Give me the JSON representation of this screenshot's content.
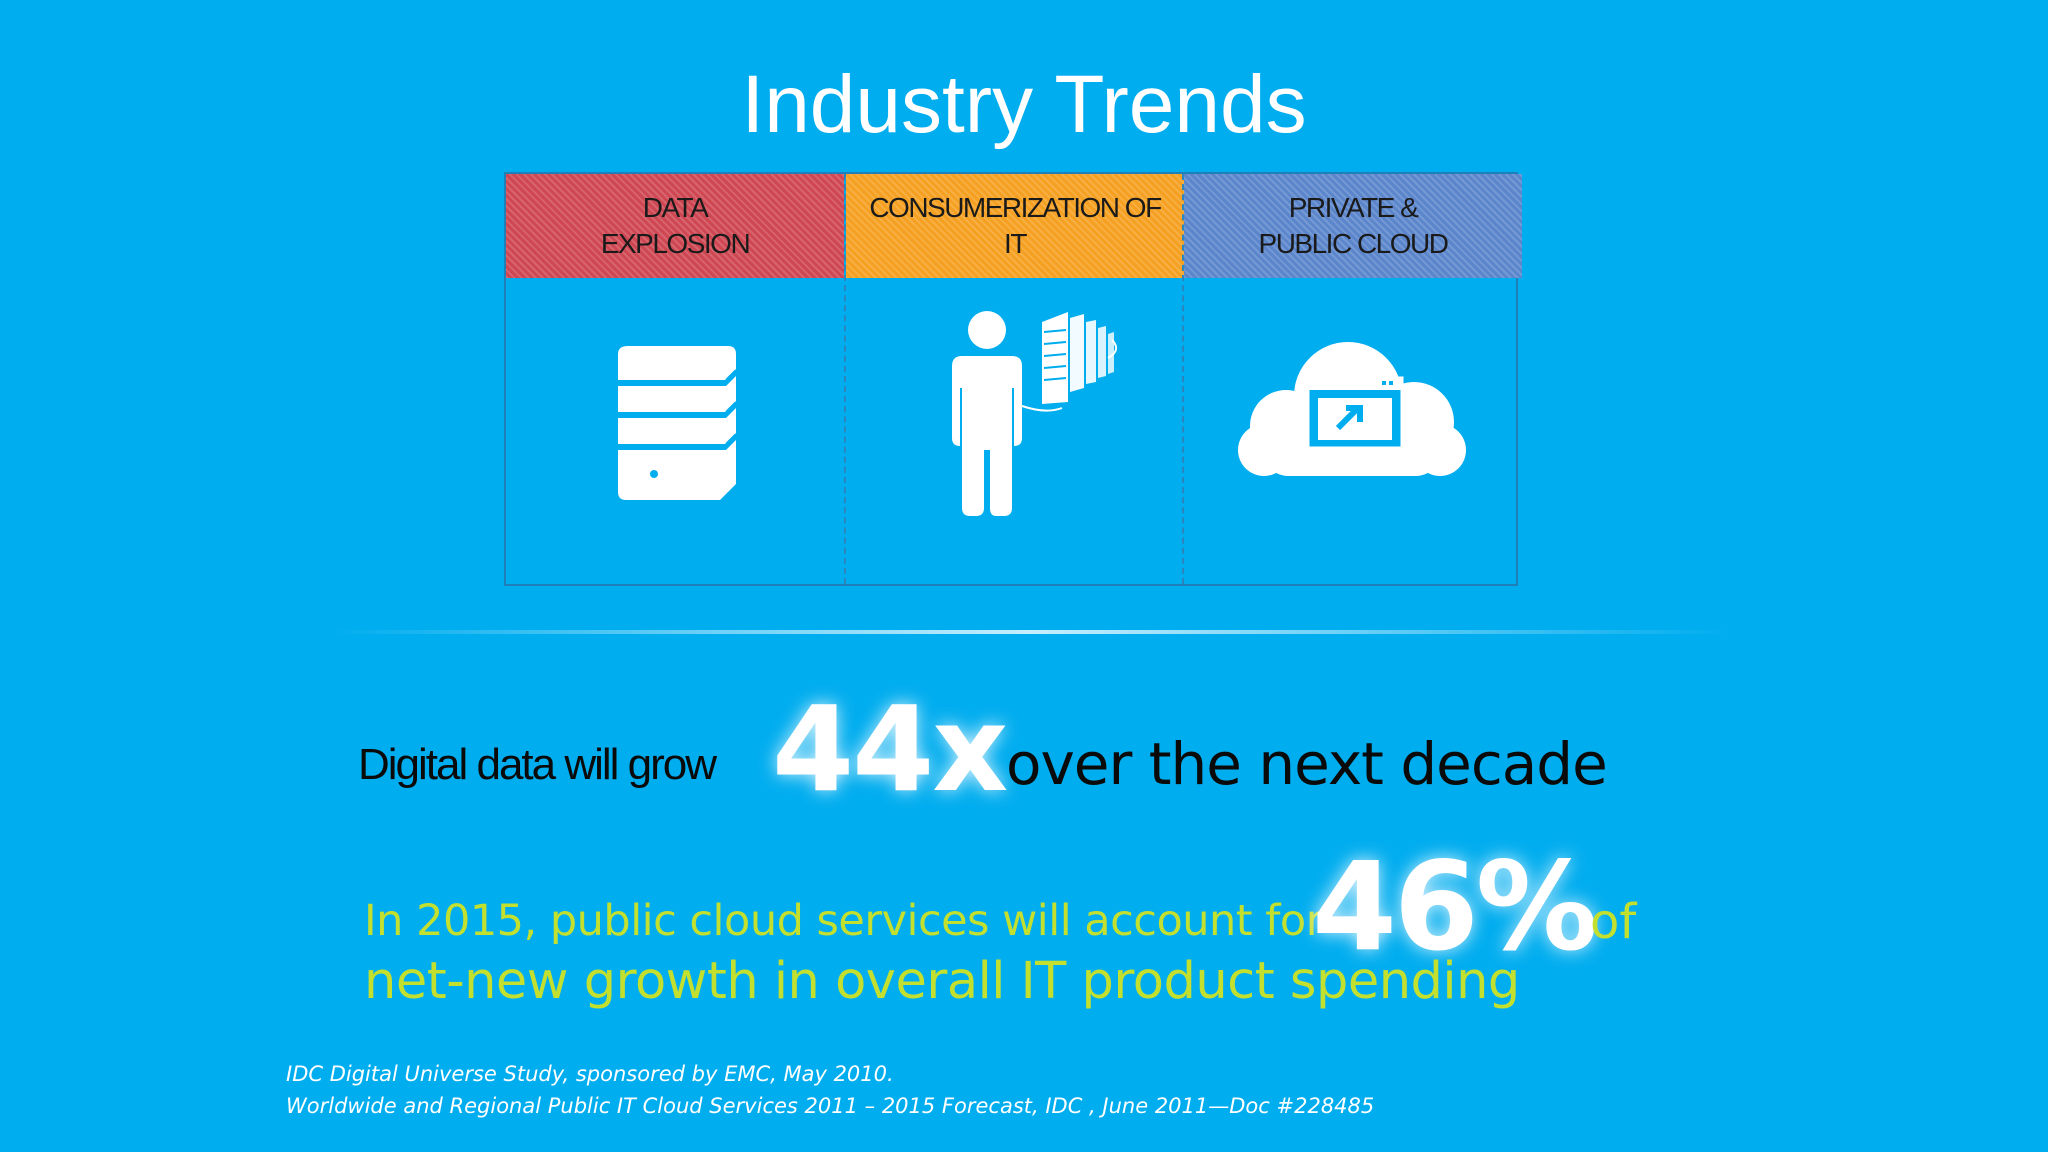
{
  "title": "Industry Trends",
  "columns": [
    {
      "heading": "DATA\nEXPLOSION",
      "icon": "server-stack-icon",
      "color": "#cf4752"
    },
    {
      "heading": "CONSUMERIZATION OF\nIT",
      "icon": "person-with-servers-icon",
      "color": "#f5a020"
    },
    {
      "heading": "PRIVATE &\nPUBLIC CLOUD",
      "icon": "cloud-window-icon",
      "color": "#5b86cc"
    }
  ],
  "stat1": {
    "prefix": "Digital data will grow",
    "value": "44x",
    "suffix": "over the next decade"
  },
  "stat2": {
    "prefix": "In 2015, public cloud services will account for",
    "value": "46%",
    "suffix": "of",
    "line2": "net-new growth in overall IT product spending"
  },
  "sources": [
    "IDC Digital Universe Study, sponsored by EMC, May 2010.",
    "Worldwide and Regional Public IT Cloud Services 2011 – 2015 Forecast, IDC , June 2011—Doc #228485"
  ],
  "colors": {
    "background": "#00adef",
    "accent_green": "#c3e02f"
  }
}
